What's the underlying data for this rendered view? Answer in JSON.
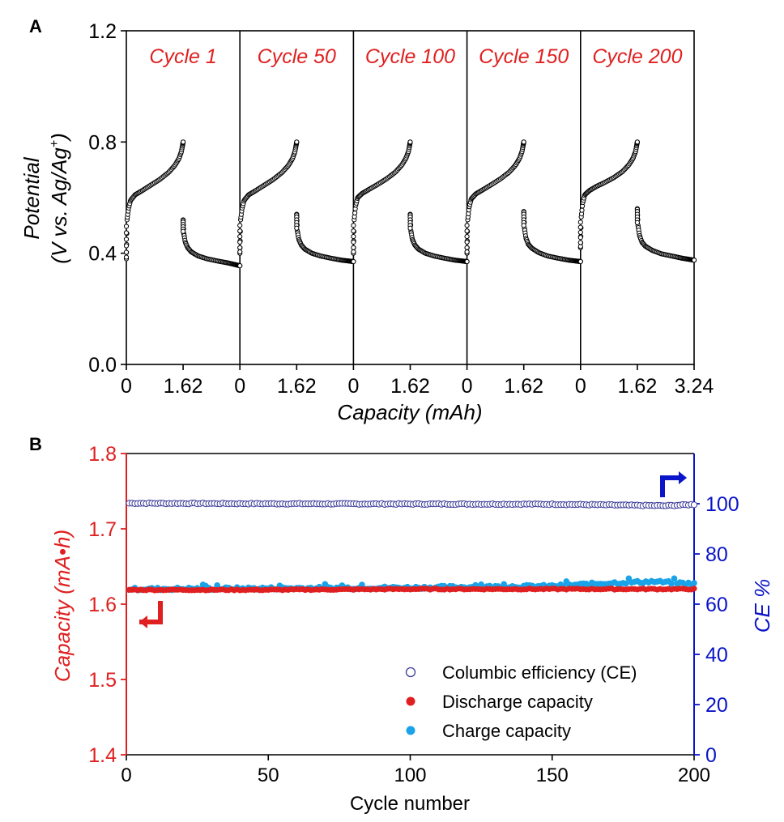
{
  "panel_labels": {
    "a": "A",
    "b": "B"
  },
  "colors": {
    "black": "#000000",
    "red": "#e02020",
    "blue": "#0a14c8",
    "cyan": "#1aa3e8",
    "ce_marker": "#3b3b9a"
  },
  "chart_data": [
    {
      "type": "scatter",
      "title": "",
      "xlabel": "Capacity (mAh)",
      "ylabel_line1": "Potential",
      "ylabel_line2_prefix": "(V vs. Ag/Ag",
      "ylabel_line2_sup": "+",
      "ylabel_line2_suffix": ")",
      "ylim": [
        0,
        1.2
      ],
      "yticks": [
        "0.0",
        "0.4",
        "0.8",
        "1.2"
      ],
      "xticks": [
        "0",
        "1.62",
        "0",
        "1.62",
        "0",
        "1.62",
        "0",
        "1.62",
        "0",
        "1.62",
        "3.24"
      ],
      "subpanel_capacity_range": [
        0,
        3.24
      ],
      "cycles": [
        {
          "label": "Cycle 1",
          "charge": {
            "capacity": [
              0,
              0.02,
              0.06,
              0.12,
              0.25,
              0.45,
              0.7,
              0.95,
              1.2,
              1.38,
              1.5,
              1.57,
              1.6,
              1.62
            ],
            "potential": [
              0.38,
              0.52,
              0.56,
              0.59,
              0.61,
              0.625,
              0.645,
              0.665,
              0.69,
              0.715,
              0.74,
              0.765,
              0.785,
              0.8
            ]
          },
          "discharge": {
            "capacity": [
              1.62,
              1.64,
              1.68,
              1.75,
              1.85,
              2.05,
              2.3,
              2.6,
              2.9,
              3.24
            ],
            "potential": [
              0.52,
              0.47,
              0.44,
              0.42,
              0.405,
              0.39,
              0.38,
              0.372,
              0.365,
              0.355
            ]
          }
        },
        {
          "label": "Cycle 50",
          "charge": {
            "capacity": [
              0,
              0.02,
              0.06,
              0.12,
              0.25,
              0.45,
              0.7,
              0.95,
              1.2,
              1.38,
              1.5,
              1.57,
              1.6,
              1.62
            ],
            "potential": [
              0.4,
              0.52,
              0.56,
              0.59,
              0.61,
              0.625,
              0.645,
              0.665,
              0.69,
              0.715,
              0.74,
              0.765,
              0.785,
              0.8
            ]
          },
          "discharge": {
            "capacity": [
              1.62,
              1.64,
              1.68,
              1.75,
              1.85,
              2.05,
              2.3,
              2.6,
              2.9,
              3.24
            ],
            "potential": [
              0.54,
              0.48,
              0.45,
              0.43,
              0.415,
              0.4,
              0.39,
              0.382,
              0.375,
              0.37
            ]
          }
        },
        {
          "label": "Cycle 100",
          "charge": {
            "capacity": [
              0,
              0.02,
              0.06,
              0.12,
              0.25,
              0.45,
              0.7,
              0.95,
              1.2,
              1.38,
              1.5,
              1.57,
              1.6,
              1.62
            ],
            "potential": [
              0.4,
              0.52,
              0.57,
              0.6,
              0.615,
              0.63,
              0.648,
              0.668,
              0.692,
              0.717,
              0.742,
              0.766,
              0.786,
              0.8
            ]
          },
          "discharge": {
            "capacity": [
              1.62,
              1.64,
              1.68,
              1.75,
              1.85,
              2.05,
              2.3,
              2.6,
              2.9,
              3.24
            ],
            "potential": [
              0.54,
              0.48,
              0.45,
              0.43,
              0.415,
              0.4,
              0.39,
              0.382,
              0.375,
              0.37
            ]
          }
        },
        {
          "label": "Cycle 150",
          "charge": {
            "capacity": [
              0,
              0.02,
              0.06,
              0.12,
              0.25,
              0.45,
              0.7,
              0.95,
              1.2,
              1.38,
              1.5,
              1.57,
              1.6,
              1.62
            ],
            "potential": [
              0.4,
              0.52,
              0.565,
              0.595,
              0.613,
              0.628,
              0.647,
              0.667,
              0.691,
              0.716,
              0.741,
              0.766,
              0.786,
              0.8
            ]
          },
          "discharge": {
            "capacity": [
              1.62,
              1.64,
              1.68,
              1.75,
              1.85,
              2.05,
              2.3,
              2.6,
              2.9,
              3.24
            ],
            "potential": [
              0.55,
              0.49,
              0.455,
              0.432,
              0.418,
              0.402,
              0.39,
              0.382,
              0.375,
              0.37
            ]
          }
        },
        {
          "label": "Cycle 200",
          "charge": {
            "capacity": [
              0,
              0.02,
              0.06,
              0.12,
              0.25,
              0.45,
              0.7,
              0.95,
              1.2,
              1.38,
              1.5,
              1.57,
              1.6,
              1.62
            ],
            "potential": [
              0.42,
              0.53,
              0.58,
              0.61,
              0.625,
              0.64,
              0.655,
              0.672,
              0.694,
              0.718,
              0.742,
              0.766,
              0.786,
              0.8
            ]
          },
          "discharge": {
            "capacity": [
              1.62,
              1.64,
              1.68,
              1.75,
              1.85,
              2.05,
              2.3,
              2.6,
              2.9,
              3.24
            ],
            "potential": [
              0.56,
              0.5,
              0.465,
              0.44,
              0.425,
              0.41,
              0.398,
              0.39,
              0.382,
              0.375
            ]
          }
        }
      ]
    },
    {
      "type": "scatter",
      "title": "",
      "xlabel": "Cycle number",
      "ylabel_left": "Capacity (mA•h)",
      "ylabel_right": "CE %",
      "xlim": [
        0,
        200
      ],
      "ylim_left": [
        1.4,
        1.8
      ],
      "ylim_right": [
        0,
        120
      ],
      "xticks": [
        "0",
        "50",
        "100",
        "150",
        "200"
      ],
      "yticks_left": [
        "1.4",
        "1.5",
        "1.6",
        "1.7",
        "1.8"
      ],
      "yticks_right": [
        "0",
        "20",
        "40",
        "60",
        "80",
        "100"
      ],
      "legend_position": "bottom-right",
      "series": [
        {
          "name": "Columbic efficiency (CE)",
          "axis": "right",
          "marker": "open-circle",
          "color": "#3b3b9a",
          "x_start": 1,
          "x_end": 200,
          "x_step": 1,
          "keypoints": {
            "cycle": [
              1,
              50,
              100,
              150,
              170,
              190,
              200
            ],
            "value": [
              100.2,
              100,
              99.9,
              99.8,
              99.5,
              99.2,
              99.7
            ]
          }
        },
        {
          "name": "Discharge capacity",
          "axis": "left",
          "marker": "filled-circle",
          "color": "#e02020",
          "x_start": 1,
          "x_end": 200,
          "x_step": 1,
          "keypoints": {
            "cycle": [
              1,
              50,
              100,
              150,
              200
            ],
            "value": [
              1.619,
              1.619,
              1.62,
              1.62,
              1.62
            ]
          }
        },
        {
          "name": "Charge capacity",
          "axis": "left",
          "marker": "filled-circle",
          "color": "#1aa3e8",
          "x_start": 1,
          "x_end": 200,
          "x_step": 1,
          "keypoints": {
            "cycle": [
              1,
              50,
              100,
              150,
              160,
              170,
              185,
              200
            ],
            "value": [
              1.62,
              1.621,
              1.622,
              1.624,
              1.626,
              1.628,
              1.63,
              1.627
            ]
          }
        }
      ]
    }
  ]
}
